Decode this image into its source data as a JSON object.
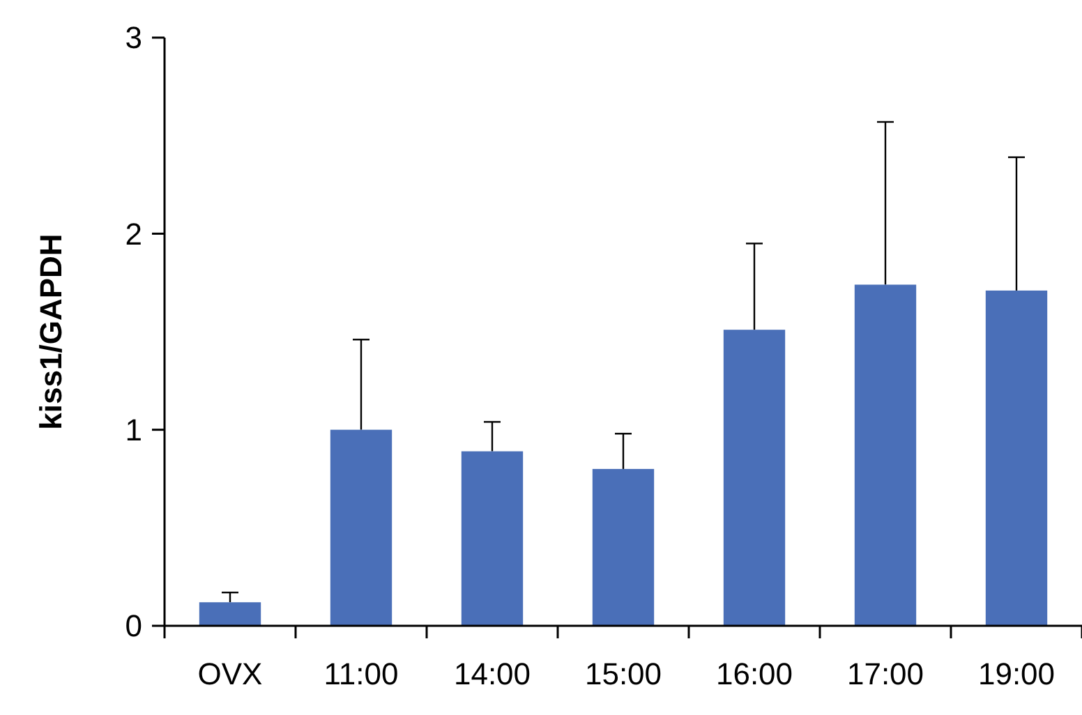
{
  "chart_data": {
    "type": "bar",
    "ylabel": "kiss1/GAPDH",
    "categories": [
      "OVX",
      "11:00",
      "14:00",
      "15:00",
      "16:00",
      "17:00",
      "19:00"
    ],
    "values": [
      0.12,
      1.0,
      0.89,
      0.8,
      1.51,
      1.74,
      1.71
    ],
    "errors": [
      [
        0.12,
        0.17
      ],
      [
        1.0,
        1.46
      ],
      [
        0.89,
        1.04
      ],
      [
        0.8,
        0.98
      ],
      [
        1.51,
        1.95
      ],
      [
        1.74,
        2.57
      ],
      [
        1.71,
        2.39
      ]
    ],
    "color": "#4a6fb8",
    "ylim": [
      0,
      3
    ],
    "yticks": [
      0,
      1,
      2,
      3
    ],
    "grid": false
  }
}
